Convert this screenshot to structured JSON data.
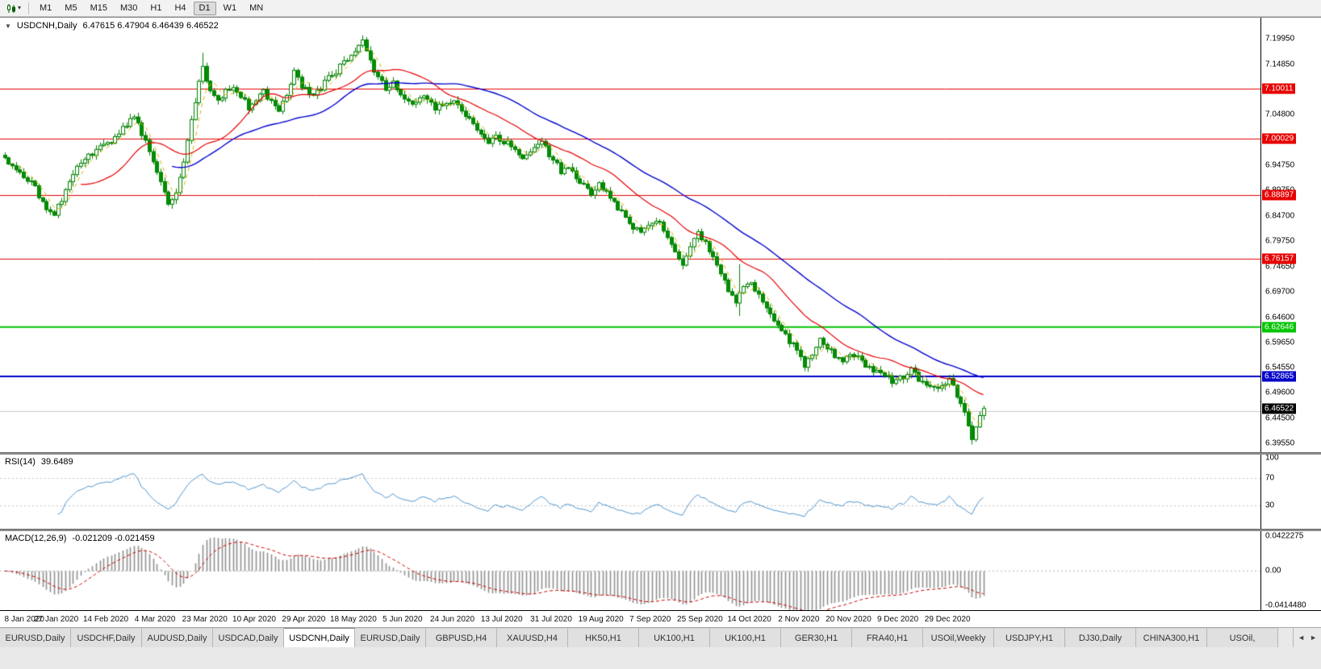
{
  "toolbar": {
    "dropdown_caret": "▾",
    "timeframes": [
      {
        "label": "M1",
        "active": false
      },
      {
        "label": "M5",
        "active": false
      },
      {
        "label": "M15",
        "active": false
      },
      {
        "label": "M30",
        "active": false
      },
      {
        "label": "H1",
        "active": false
      },
      {
        "label": "H4",
        "active": false
      },
      {
        "label": "D1",
        "active": true
      },
      {
        "label": "W1",
        "active": false
      },
      {
        "label": "MN",
        "active": false
      }
    ]
  },
  "header": {
    "collapse_icon": "▼",
    "symbol": "USDCNH,Daily",
    "ohlc_text": "6.47615 6.47904 6.46439 6.46522"
  },
  "rsi_panel": {
    "label": "RSI(14)",
    "value": "39.6489",
    "axis_labels": [
      "100",
      "70",
      "30"
    ]
  },
  "macd_panel": {
    "label": "MACD(12,26,9)",
    "values": "-0.021209 -0.021459",
    "axis_labels": [
      "0.0422275",
      "0.00",
      "-0.0414480"
    ]
  },
  "price_axis": {
    "tick_labels": [
      "7.19950",
      "7.14850",
      "7.09800",
      "7.04800",
      "6.99750",
      "6.94750",
      "6.89750",
      "6.84700",
      "6.79750",
      "6.74650",
      "6.69700",
      "6.64600",
      "6.59650",
      "6.54550",
      "6.49600",
      "6.44500",
      "6.39550"
    ]
  },
  "chart_data": {
    "type": "candlestick",
    "symbol": "USDCNH",
    "timeframe": "Daily",
    "ohlc_current": {
      "open": 6.47615,
      "high": 6.47904,
      "low": 6.46439,
      "close": 6.46522
    },
    "y_range": [
      6.3765,
      7.2405
    ],
    "bars_total": 258,
    "x_labels": [
      "8 Jan 2020",
      "27 Jan 2020",
      "14 Feb 2020",
      "4 Mar 2020",
      "23 Mar 2020",
      "10 Apr 2020",
      "29 Apr 2020",
      "18 May 2020",
      "5 Jun 2020",
      "24 Jun 2020",
      "13 Jul 2020",
      "31 Jul 2020",
      "19 Aug 2020",
      "7 Sep 2020",
      "25 Sep 2020",
      "14 Oct 2020",
      "2 Nov 2020",
      "20 Nov 2020",
      "9 Dec 2020",
      "29 Dec 2020"
    ],
    "x_label_step_bars": 13,
    "close_anchors": [
      [
        0,
        6.962
      ],
      [
        4,
        6.938
      ],
      [
        8,
        6.902
      ],
      [
        11,
        6.862
      ],
      [
        13,
        6.846
      ],
      [
        15,
        6.882
      ],
      [
        17,
        6.918
      ],
      [
        20,
        6.952
      ],
      [
        23,
        6.97
      ],
      [
        26,
        6.986
      ],
      [
        29,
        7.002
      ],
      [
        32,
        7.028
      ],
      [
        34,
        7.042
      ],
      [
        36,
        7.012
      ],
      [
        38,
        6.972
      ],
      [
        41,
        6.918
      ],
      [
        43,
        6.87
      ],
      [
        45,
        6.89
      ],
      [
        47,
        6.958
      ],
      [
        49,
        7.04
      ],
      [
        51,
        7.112
      ],
      [
        52,
        7.14
      ],
      [
        54,
        7.098
      ],
      [
        56,
        7.072
      ],
      [
        58,
        7.092
      ],
      [
        60,
        7.108
      ],
      [
        62,
        7.088
      ],
      [
        64,
        7.062
      ],
      [
        66,
        7.078
      ],
      [
        68,
        7.096
      ],
      [
        70,
        7.072
      ],
      [
        72,
        7.058
      ],
      [
        74,
        7.092
      ],
      [
        76,
        7.132
      ],
      [
        78,
        7.104
      ],
      [
        80,
        7.088
      ],
      [
        83,
        7.102
      ],
      [
        86,
        7.128
      ],
      [
        89,
        7.15
      ],
      [
        92,
        7.172
      ],
      [
        94,
        7.192
      ],
      [
        96,
        7.152
      ],
      [
        98,
        7.122
      ],
      [
        100,
        7.102
      ],
      [
        102,
        7.112
      ],
      [
        104,
        7.084
      ],
      [
        107,
        7.072
      ],
      [
        110,
        7.082
      ],
      [
        113,
        7.062
      ],
      [
        116,
        7.076
      ],
      [
        119,
        7.066
      ],
      [
        122,
        7.036
      ],
      [
        125,
        7.006
      ],
      [
        127,
        6.992
      ],
      [
        129,
        7.006
      ],
      [
        131,
        6.996
      ],
      [
        134,
        6.978
      ],
      [
        136,
        6.962
      ],
      [
        139,
        6.982
      ],
      [
        141,
        6.992
      ],
      [
        143,
        6.968
      ],
      [
        146,
        6.936
      ],
      [
        148,
        6.948
      ],
      [
        151,
        6.912
      ],
      [
        154,
        6.888
      ],
      [
        156,
        6.908
      ],
      [
        158,
        6.892
      ],
      [
        161,
        6.862
      ],
      [
        164,
        6.832
      ],
      [
        167,
        6.816
      ],
      [
        169,
        6.828
      ],
      [
        171,
        6.842
      ],
      [
        173,
        6.818
      ],
      [
        176,
        6.776
      ],
      [
        178,
        6.752
      ],
      [
        180,
        6.782
      ],
      [
        182,
        6.812
      ],
      [
        184,
        6.796
      ],
      [
        186,
        6.768
      ],
      [
        188,
        6.738
      ],
      [
        190,
        6.7
      ],
      [
        192,
        6.672
      ],
      [
        194,
        6.706
      ],
      [
        196,
        6.718
      ],
      [
        198,
        6.688
      ],
      [
        200,
        6.662
      ],
      [
        202,
        6.638
      ],
      [
        204,
        6.618
      ],
      [
        206,
        6.598
      ],
      [
        208,
        6.58
      ],
      [
        210,
        6.552
      ],
      [
        212,
        6.572
      ],
      [
        214,
        6.602
      ],
      [
        216,
        6.588
      ],
      [
        218,
        6.568
      ],
      [
        220,
        6.558
      ],
      [
        222,
        6.576
      ],
      [
        224,
        6.566
      ],
      [
        226,
        6.552
      ],
      [
        228,
        6.542
      ],
      [
        230,
        6.532
      ],
      [
        232,
        6.524
      ],
      [
        234,
        6.518
      ],
      [
        236,
        6.528
      ],
      [
        238,
        6.54
      ],
      [
        240,
        6.524
      ],
      [
        242,
        6.508
      ],
      [
        244,
        6.502
      ],
      [
        246,
        6.514
      ],
      [
        248,
        6.522
      ],
      [
        250,
        6.488
      ],
      [
        252,
        6.458
      ],
      [
        253,
        6.43
      ],
      [
        254,
        6.406
      ],
      [
        255,
        6.428
      ],
      [
        256,
        6.452
      ],
      [
        257,
        6.4652
      ]
    ],
    "special_bars": [
      {
        "bar": 52,
        "high_ext": 0.018,
        "low_ext": 0.0
      },
      {
        "bar": 193,
        "high_ext": 0.05,
        "low_ext": 0.018
      },
      {
        "bar": 254,
        "high_ext": 0.0,
        "low_ext": 0.006
      }
    ],
    "horizontal_levels": [
      {
        "price": 7.10011,
        "label": "7.10011",
        "color": "#e60000",
        "width": 1
      },
      {
        "price": 7.00029,
        "label": "7.00029",
        "color": "#e60000",
        "width": 1
      },
      {
        "price": 6.88897,
        "label": "6.88897",
        "color": "#e60000",
        "width": 1
      },
      {
        "price": 6.76157,
        "label": "6.76157",
        "color": "#e60000",
        "width": 1
      },
      {
        "price": 6.62646,
        "label": "6.62646",
        "color": "#00c400",
        "width": 2
      },
      {
        "price": 6.52865,
        "label": "6.52865",
        "color": "#0000c8",
        "width": 2
      },
      {
        "price": 6.46,
        "label": "",
        "color": "#c8c8c8",
        "width": 1
      }
    ],
    "current_price_tag": {
      "value": "6.46522",
      "bg": "#000000"
    },
    "candle_colors": {
      "up_body": "#ffffff",
      "down_body": "#009000",
      "outline": "#008000"
    },
    "ma_periods": {
      "fast": 5,
      "mid": 21,
      "slow": 45
    },
    "ma_colors": {
      "fast": "#d9b300",
      "mid": "#e60000",
      "slow": "#0000cc"
    },
    "indicators": {
      "rsi": {
        "period": 14,
        "current": 39.6489,
        "levels": [
          100,
          70,
          30
        ],
        "color": "#4f94cd"
      },
      "macd": {
        "fast": 12,
        "slow": 26,
        "signal": 9,
        "current_macd": -0.021209,
        "current_signal": -0.021459,
        "axis_max": 0.0422275,
        "axis_min": -0.041448,
        "hist_color": "#909090",
        "signal_color": "#cc0000"
      }
    }
  },
  "tabs": {
    "scroll_left": "◄",
    "scroll_right": "►",
    "items": [
      {
        "label": "EURUSD,Daily",
        "active": false
      },
      {
        "label": "USDCHF,Daily",
        "active": false
      },
      {
        "label": "AUDUSD,Daily",
        "active": false
      },
      {
        "label": "USDCAD,Daily",
        "active": false
      },
      {
        "label": "USDCNH,Daily",
        "active": true
      },
      {
        "label": "EURUSD,Daily",
        "active": false
      },
      {
        "label": "GBPUSD,H4",
        "active": false
      },
      {
        "label": "XAUUSD,H4",
        "active": false
      },
      {
        "label": "HK50,H1",
        "active": false
      },
      {
        "label": "UK100,H1",
        "active": false
      },
      {
        "label": "UK100,H1",
        "active": false
      },
      {
        "label": "GER30,H1",
        "active": false
      },
      {
        "label": "FRA40,H1",
        "active": false
      },
      {
        "label": "USOil,Weekly",
        "active": false
      },
      {
        "label": "USDJPY,H1",
        "active": false
      },
      {
        "label": "DJ30,Daily",
        "active": false
      },
      {
        "label": "CHINA300,H1",
        "active": false
      },
      {
        "label": "USOil,",
        "active": false
      }
    ]
  }
}
